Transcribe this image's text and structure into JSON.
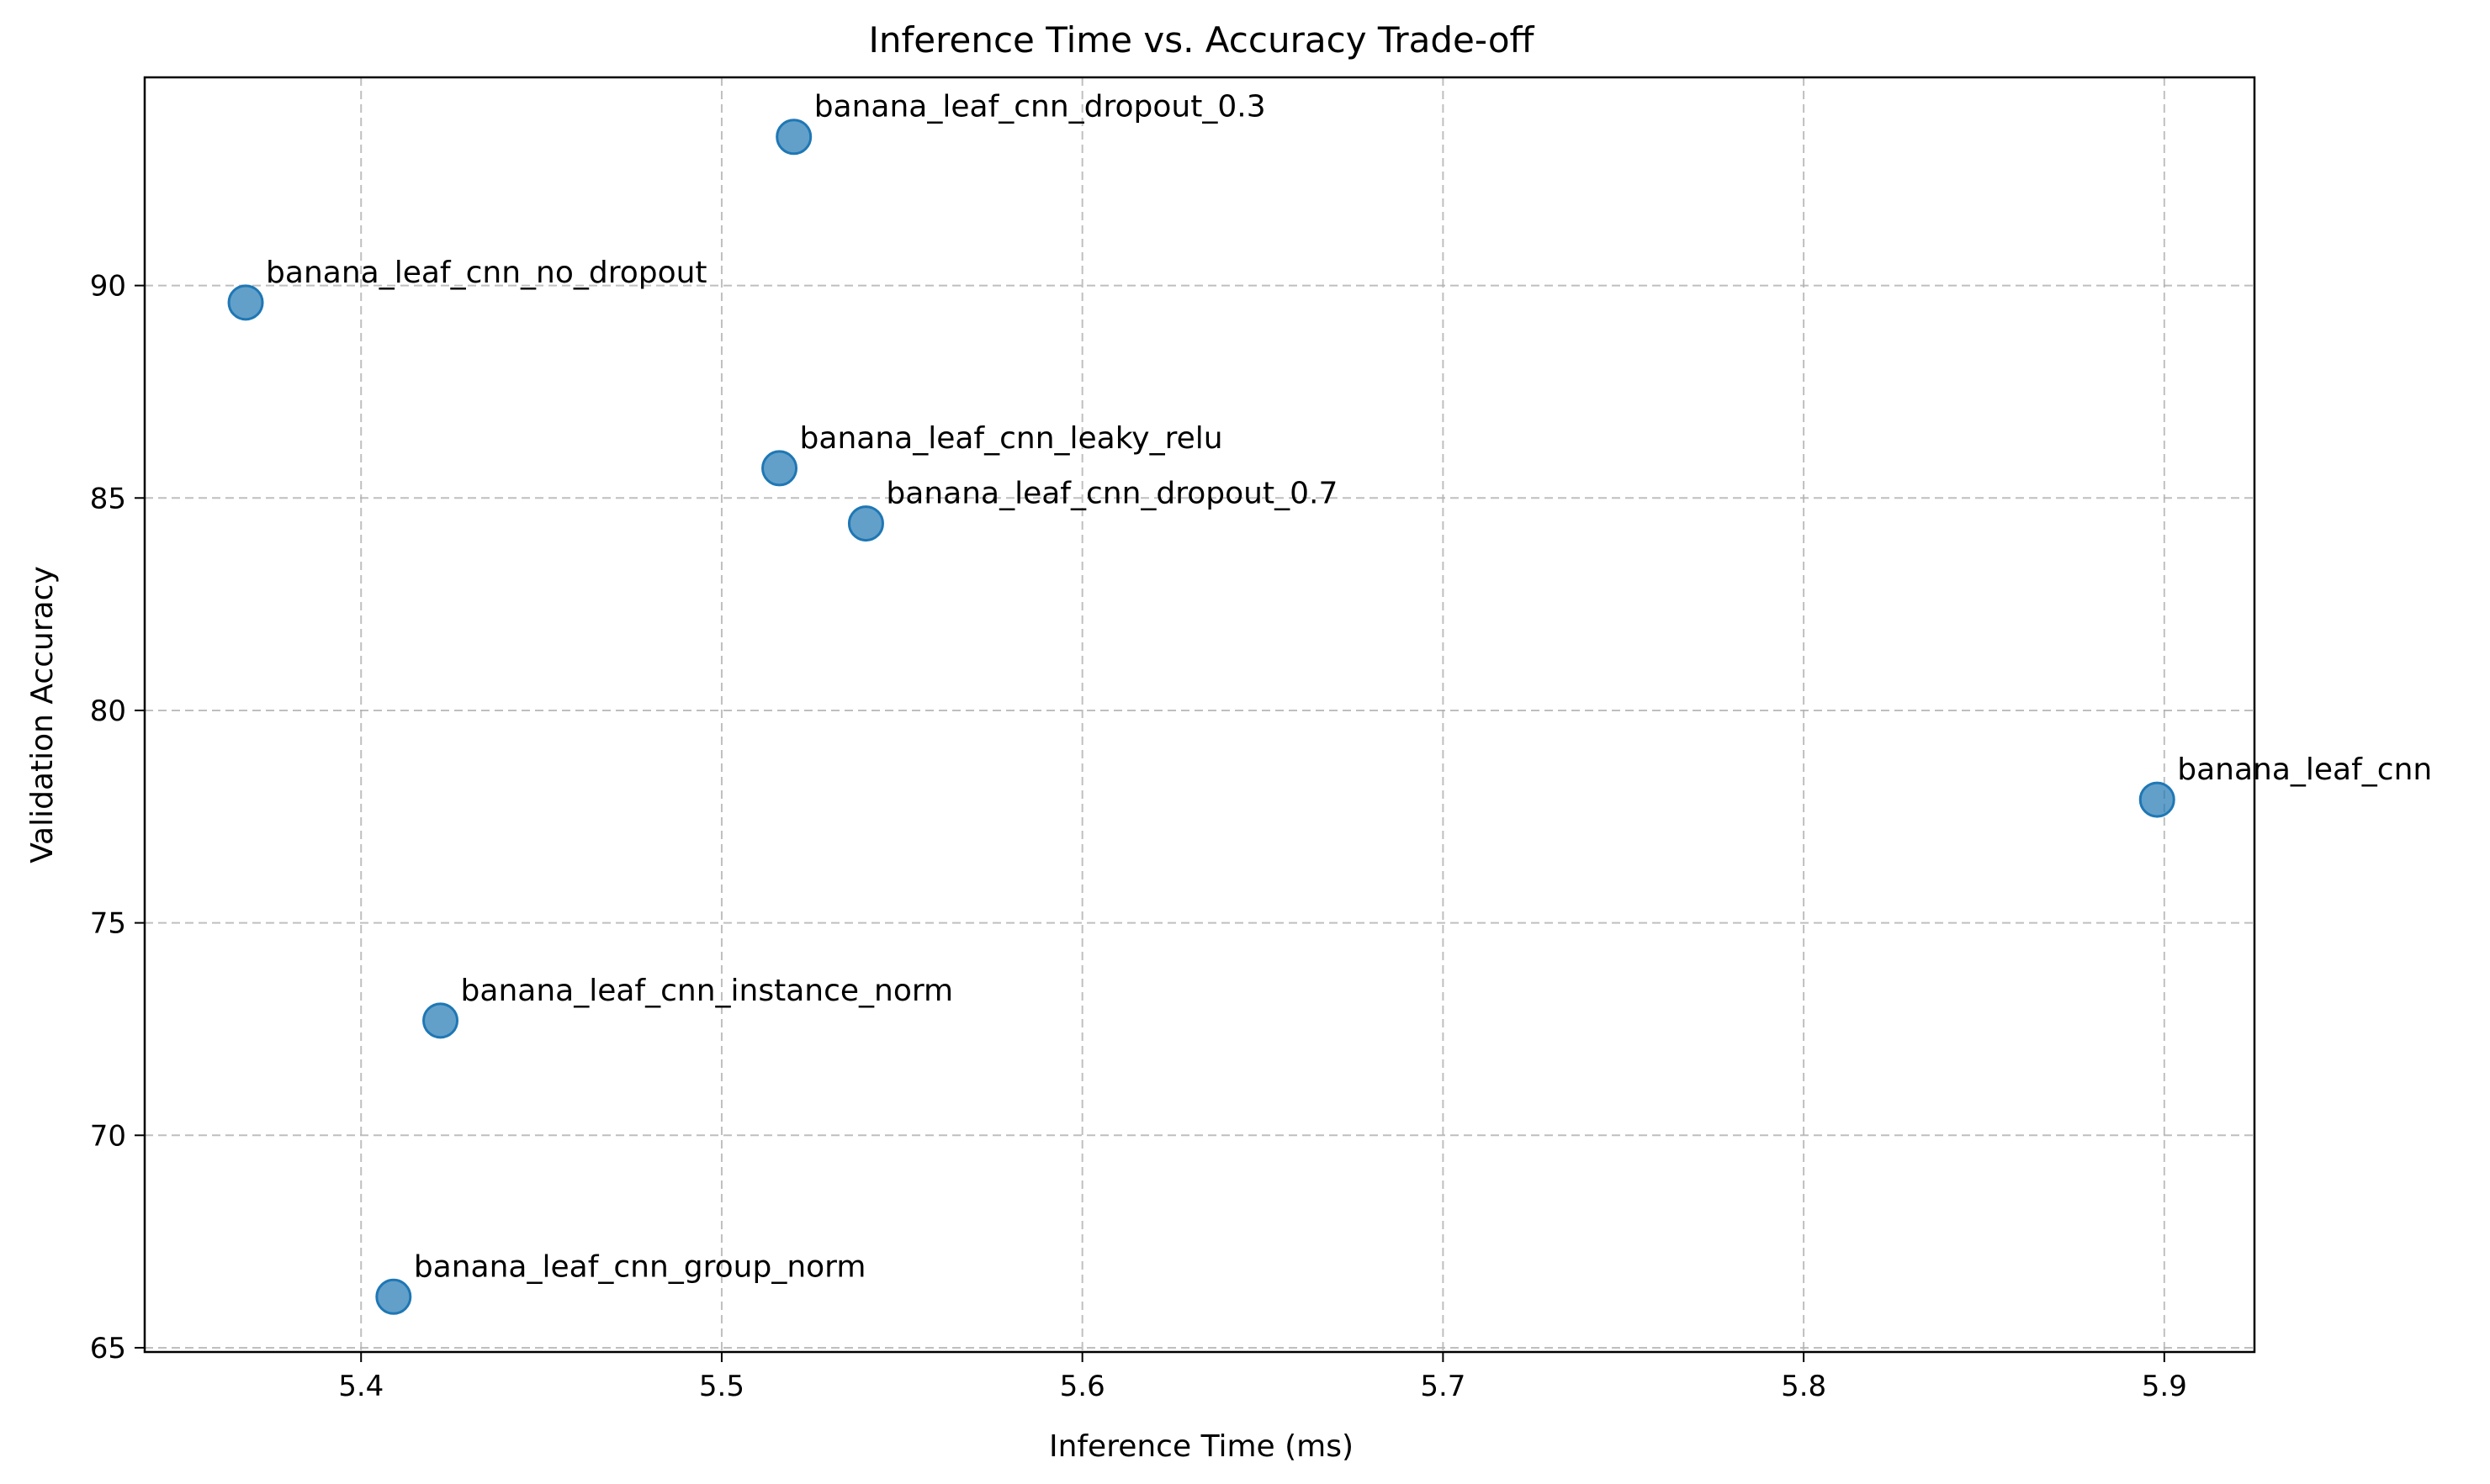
{
  "chart_data": {
    "type": "scatter",
    "title": "Inference Time vs. Accuracy Trade-off",
    "xlabel": "Inference Time (ms)",
    "ylabel": "Validation Accuracy",
    "xlim": [
      5.34,
      5.925
    ],
    "ylim": [
      64.9,
      94.9
    ],
    "xticks": [
      5.4,
      5.5,
      5.6,
      5.7,
      5.8,
      5.9
    ],
    "xtick_labels": [
      "5.4",
      "5.5",
      "5.6",
      "5.7",
      "5.8",
      "5.9"
    ],
    "yticks": [
      65,
      70,
      75,
      80,
      85,
      90
    ],
    "ytick_labels": [
      "65",
      "70",
      "75",
      "80",
      "85",
      "90"
    ],
    "grid": true,
    "marker_color": "#1f77b4",
    "points": [
      {
        "label": "banana_leaf_cnn_dropout_0.3",
        "x": 5.52,
        "y": 93.5
      },
      {
        "label": "banana_leaf_cnn_no_dropout",
        "x": 5.368,
        "y": 89.6
      },
      {
        "label": "banana_leaf_cnn_leaky_relu",
        "x": 5.516,
        "y": 85.7
      },
      {
        "label": "banana_leaf_cnn_dropout_0.7",
        "x": 5.54,
        "y": 84.4
      },
      {
        "label": "banana_leaf_cnn",
        "x": 5.898,
        "y": 77.9
      },
      {
        "label": "banana_leaf_cnn_instance_norm",
        "x": 5.422,
        "y": 72.7
      },
      {
        "label": "banana_leaf_cnn_group_norm",
        "x": 5.409,
        "y": 66.2
      }
    ]
  }
}
